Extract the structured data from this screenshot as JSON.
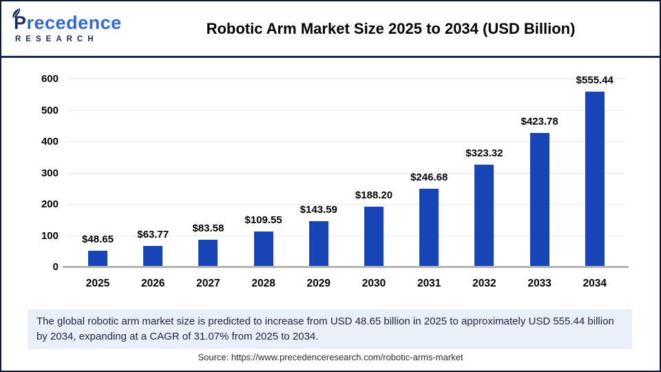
{
  "header": {
    "logo": {
      "brand_p": "P",
      "brand_rest": "recedence",
      "sub": "RESEARCH"
    },
    "title": "Robotic Arm Market Size 2025 to 2034 (USD Billion)"
  },
  "chart_data": {
    "type": "bar",
    "title": "Robotic Arm Market Size 2025 to 2034 (USD Billion)",
    "categories": [
      "2025",
      "2026",
      "2027",
      "2028",
      "2029",
      "2030",
      "2031",
      "2032",
      "2033",
      "2034"
    ],
    "values": [
      48.65,
      63.77,
      83.58,
      109.55,
      143.59,
      188.2,
      246.68,
      323.32,
      423.78,
      555.44
    ],
    "value_labels": [
      "$48.65",
      "$63.77",
      "$83.58",
      "$109.55",
      "$143.59",
      "$188.20",
      "$246.68",
      "$323.32",
      "$423.78",
      "$555.44"
    ],
    "xlabel": "",
    "ylabel": "",
    "ylim": [
      0,
      600
    ],
    "yticks": [
      0,
      100,
      200,
      300,
      400,
      500,
      600
    ],
    "grid": "horizontal",
    "legend": "none",
    "bar_color": "#1745b5"
  },
  "note": {
    "text": "The global robotic arm market size is predicted to increase from USD 48.65 billion in 2025 to approximately USD 555.44 billion by 2034, expanding at a CAGR of 31.07% from 2025 to 2034."
  },
  "source": {
    "text": "Source: https://www.precedenceresearch.com/robotic-arms-market"
  },
  "colors": {
    "bar": "#1745b5",
    "brand_navy": "#1f2d5c",
    "brand_blue": "#3468cc",
    "note_background": "#e9f0f9",
    "header_divider": "#1b2b5e"
  }
}
